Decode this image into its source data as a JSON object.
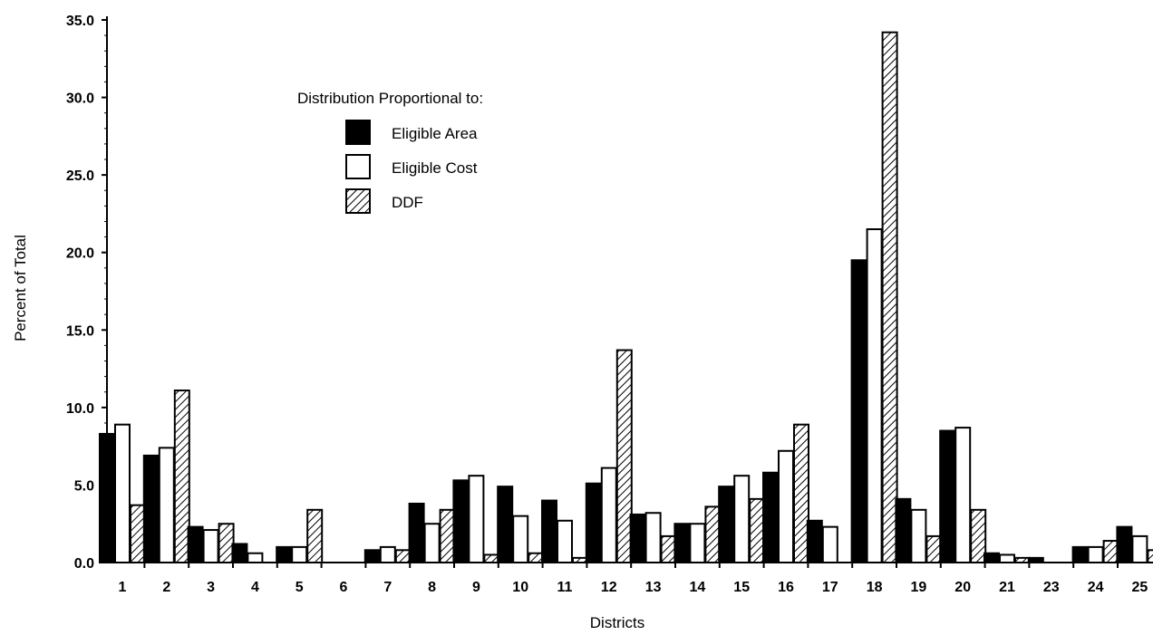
{
  "chart_data": {
    "type": "bar",
    "title": "",
    "xlabel": "Districts",
    "ylabel": "Percent of Total",
    "ylim": [
      0,
      35
    ],
    "yticks": [
      "0.0",
      "5.0",
      "10.0",
      "15.0",
      "20.0",
      "25.0",
      "30.0",
      "35.0"
    ],
    "ytick_values": [
      0,
      5,
      10,
      15,
      20,
      25,
      30,
      35
    ],
    "grid": false,
    "legend": {
      "title": "Distribution Proportional to:",
      "placement": "top-center"
    },
    "categories": [
      "1",
      "2",
      "3",
      "4",
      "5",
      "6",
      "7",
      "8",
      "9",
      "10",
      "11",
      "12",
      "13",
      "14",
      "15",
      "16",
      "17",
      "18",
      "19",
      "20",
      "21",
      "23",
      "24",
      "25"
    ],
    "series": [
      {
        "name": "Eligible Area",
        "fill": "solid",
        "color": "#000000",
        "values": [
          8.3,
          6.9,
          2.3,
          1.2,
          1.0,
          0.0,
          0.8,
          3.8,
          5.3,
          4.9,
          4.0,
          5.1,
          3.1,
          2.5,
          4.9,
          5.8,
          2.7,
          19.5,
          4.1,
          8.5,
          0.6,
          0.3,
          1.0,
          2.3
        ]
      },
      {
        "name": "Eligible Cost",
        "fill": "open",
        "color": "#ffffff",
        "values": [
          8.9,
          7.4,
          2.1,
          0.6,
          1.0,
          0.0,
          1.0,
          2.5,
          5.6,
          3.0,
          2.7,
          6.1,
          3.2,
          2.5,
          5.6,
          7.2,
          2.3,
          21.5,
          3.4,
          8.7,
          0.5,
          0.0,
          1.0,
          1.7
        ]
      },
      {
        "name": "DDF",
        "fill": "hatched",
        "color": "#000000",
        "values": [
          3.7,
          11.1,
          2.5,
          0.0,
          3.4,
          0.0,
          0.8,
          3.4,
          0.5,
          0.6,
          0.3,
          13.7,
          1.7,
          3.6,
          4.1,
          8.9,
          0.0,
          34.2,
          1.7,
          3.4,
          0.3,
          0.0,
          1.4,
          0.8
        ]
      }
    ]
  }
}
